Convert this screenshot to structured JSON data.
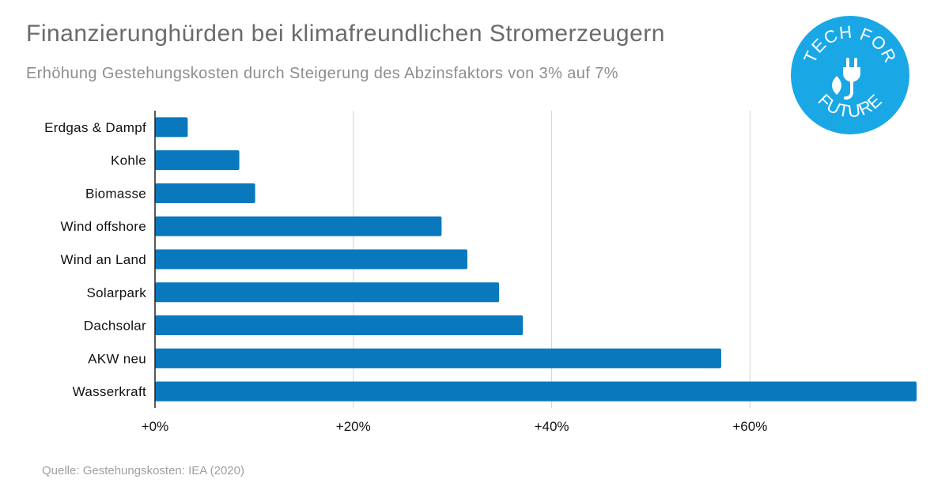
{
  "header": {
    "title": "Finanzierunghürden bei klimafreundlichen Stromerzeugern",
    "subtitle": "Erhöhung Gestehungskosten durch Steigerung des Abzinsfaktors von 3% auf 7%"
  },
  "source": "Quelle: Gestehungskosten: IEA (2020)",
  "logo": {
    "top_text": "TECH FOR",
    "bottom_text": "FUTURE",
    "icon": "plug-leaf-icon",
    "color": "#1aa7e6"
  },
  "colors": {
    "bar": "#0a78bd",
    "grid": "#d3d3d3",
    "axis": "#222222",
    "label": "#111111"
  },
  "chart_data": {
    "type": "bar",
    "orientation": "horizontal",
    "title": "Finanzierunghürden bei klimafreundlichen Stromerzeugern",
    "subtitle": "Erhöhung Gestehungskosten durch Steigerung des Abzinsfaktors von 3% auf 7%",
    "categories": [
      "Erdgas & Dampf",
      "Kohle",
      "Biomasse",
      "Wind offshore",
      "Wind an Land",
      "Solarpark",
      "Dachsolar",
      "AKW neu",
      "Wasserkraft"
    ],
    "values": [
      3.3,
      8.5,
      10.1,
      28.9,
      31.5,
      34.7,
      37.1,
      57.1,
      76.8
    ],
    "unit": "%",
    "xlim": [
      0,
      76.8
    ],
    "xticks": [
      0,
      20,
      40,
      60
    ],
    "xtick_labels": [
      "+0%",
      "+20%",
      "+40%",
      "+60%"
    ],
    "grid": "vertical",
    "legend": "none"
  }
}
